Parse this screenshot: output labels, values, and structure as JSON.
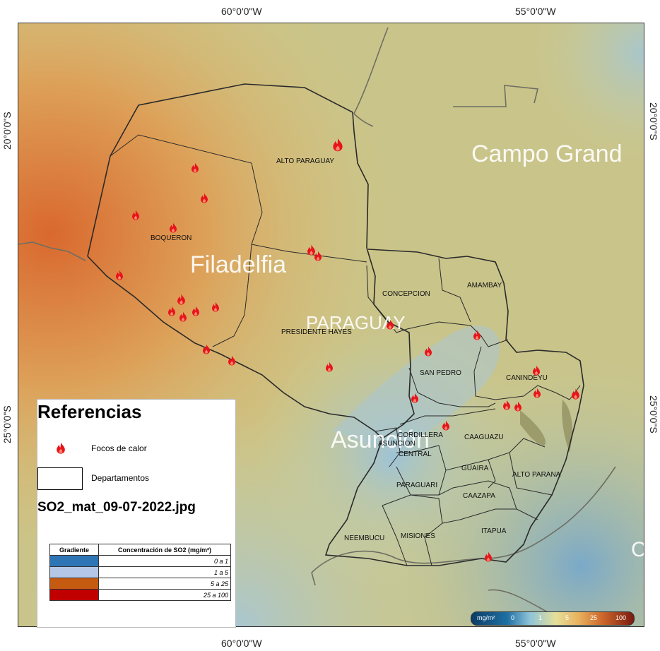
{
  "coordinates": {
    "top_left_lon": "60°0'0\"W",
    "top_right_lon": "55°0'0\"W",
    "bottom_left_lon": "60°0'0\"W",
    "bottom_right_lon": "55°0'0\"W",
    "left_lat_upper": "20°0'0\"S",
    "left_lat_lower": "25°0'0\"S",
    "right_lat_upper": "20°0'0\"S",
    "right_lat_lower": "25°0'0\"S"
  },
  "cities": {
    "campo_grande": "Campo Grand",
    "filadelfia": "Filadelfia",
    "paraguay": "PARAGUAY",
    "asuncion": "Asunción",
    "edge_c": "C"
  },
  "departments": {
    "alto_paraguay": "ALTO PARAGUAY",
    "boqueron": "BOQUERON",
    "concepcion": "CONCEPCION",
    "amambay": "AMAMBAY",
    "presidente_hayes": "PRESIDENTE HAYES",
    "san_pedro": "SAN PEDRO",
    "canindeyu": "CANINDEYU",
    "cordillera": "CORDILLERA",
    "asuncion": "ASUNCION",
    "central": "CENTRAL",
    "caaguazu": "CAAGUAZU",
    "guaira": "GUAIRA",
    "alto_parana": "ALTO PARANA",
    "paraguari": "PARAGUARI",
    "caazapa": "CAAZAPA",
    "neembucu": "NEEMBUCU",
    "misiones": "MISIONES",
    "itapua": "ITAPUA"
  },
  "legend": {
    "title": "Referencias",
    "fire_label": "Focos de calor",
    "dept_label": "Departamentos",
    "filename": "SO2_mat_09-07-2022.jpg",
    "table_header_gradient": "Gradiente",
    "table_header_conc": "Concentración de SO2 (mg/m²)",
    "rows": [
      {
        "range": "0 a 1",
        "color": "#2e75b6"
      },
      {
        "range": "1 a 5",
        "color": "#b4c7e7"
      },
      {
        "range": "5 a 25",
        "color": "#c55a11"
      },
      {
        "range": "25 a 100",
        "color": "#c00000"
      }
    ]
  },
  "colorbar": {
    "unit": "mg/m²",
    "ticks": [
      "0",
      "1",
      "5",
      "25",
      "100"
    ]
  },
  "colors": {
    "fire": "#e8141c",
    "high_so2": "#d9682e",
    "low_so2": "#9ec3d6"
  }
}
